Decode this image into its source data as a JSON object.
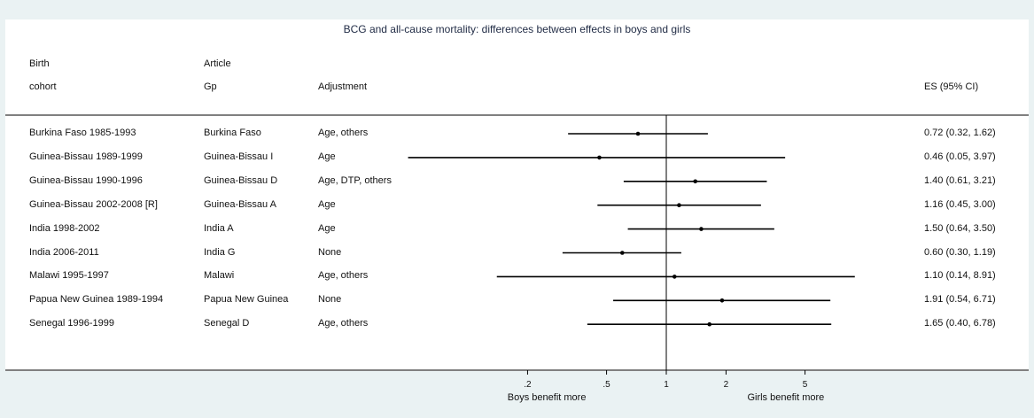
{
  "chart_data": {
    "type": "forest",
    "title": "BCG and all-cause mortality: differences between effects in boys and girls",
    "columns": {
      "cohort_header": [
        "Birth",
        "cohort"
      ],
      "article_header": [
        "Article",
        "Gp"
      ],
      "adjustment_header": "Adjustment",
      "es_header": "ES (95% CI)"
    },
    "x_scale": "log",
    "xlim": [
      0.1,
      10
    ],
    "reference_line": 1,
    "x_ticks": [
      {
        "value": 0.2,
        "label": ".2"
      },
      {
        "value": 0.5,
        "label": ".5"
      },
      {
        "value": 1,
        "label": "1"
      },
      {
        "value": 2,
        "label": "2"
      },
      {
        "value": 5,
        "label": "5"
      }
    ],
    "xlabel_left": "Boys benefit more",
    "xlabel_right": "Girls benefit more",
    "rows": [
      {
        "cohort": "Burkina Faso 1985-1993",
        "article": "Burkina Faso",
        "adjustment": "Age, others",
        "es": 0.72,
        "lo": 0.32,
        "hi": 1.62,
        "es_text": "0.72 (0.32, 1.62)"
      },
      {
        "cohort": "Guinea-Bissau 1989-1999",
        "article": "Guinea-Bissau I",
        "adjustment": "Age",
        "es": 0.46,
        "lo": 0.05,
        "hi": 3.97,
        "es_text": "0.46 (0.05, 3.97)"
      },
      {
        "cohort": "Guinea-Bissau 1990-1996",
        "article": "Guinea-Bissau D",
        "adjustment": "Age, DTP, others",
        "es": 1.4,
        "lo": 0.61,
        "hi": 3.21,
        "es_text": "1.40 (0.61, 3.21)"
      },
      {
        "cohort": "Guinea-Bissau 2002-2008 [R]",
        "article": "Guinea-Bissau A",
        "adjustment": "Age",
        "es": 1.16,
        "lo": 0.45,
        "hi": 3.0,
        "es_text": "1.16 (0.45, 3.00)"
      },
      {
        "cohort": "India 1998-2002",
        "article": "India A",
        "adjustment": "Age",
        "es": 1.5,
        "lo": 0.64,
        "hi": 3.5,
        "es_text": "1.50 (0.64, 3.50)"
      },
      {
        "cohort": "India 2006-2011",
        "article": "India G",
        "adjustment": "None",
        "es": 0.6,
        "lo": 0.3,
        "hi": 1.19,
        "es_text": "0.60 (0.30, 1.19)"
      },
      {
        "cohort": "Malawi 1995-1997",
        "article": "Malawi",
        "adjustment": "Age, others",
        "es": 1.1,
        "lo": 0.14,
        "hi": 8.91,
        "es_text": "1.10 (0.14, 8.91)"
      },
      {
        "cohort": "Papua New Guinea 1989-1994",
        "article": "Papua New Guinea",
        "adjustment": "None",
        "es": 1.91,
        "lo": 0.54,
        "hi": 6.71,
        "es_text": "1.91 (0.54, 6.71)"
      },
      {
        "cohort": "Senegal 1996-1999",
        "article": "Senegal D",
        "adjustment": "Age, others",
        "es": 1.65,
        "lo": 0.4,
        "hi": 6.78,
        "es_text": "1.65 (0.40, 6.78)"
      }
    ],
    "colors": {
      "background": "#eaf2f3",
      "panel": "#ffffff",
      "title": "#1f2a44",
      "line": "#000000"
    },
    "grid": false
  }
}
